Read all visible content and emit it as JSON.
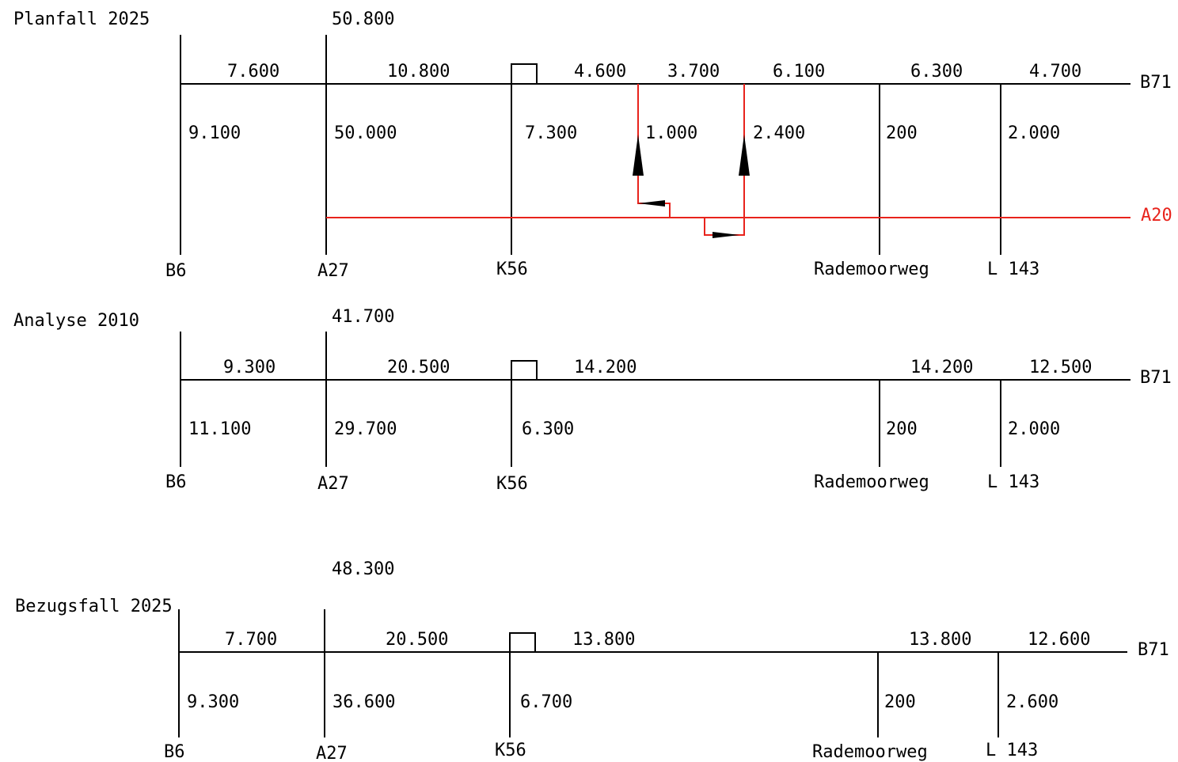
{
  "colors": {
    "line": "#000000",
    "a20": "#e8231c"
  },
  "diagrams": [
    {
      "key": "planfall",
      "title": "Planfall 2025",
      "top_value": "50.800",
      "main_road": "B71",
      "segment_values": [
        "7.600",
        "10.800",
        "4.600",
        "3.700",
        "6.100",
        "6.300",
        "4.700"
      ],
      "branches": [
        {
          "name": "B6",
          "value": "9.100"
        },
        {
          "name": "A27",
          "value": "50.000"
        },
        {
          "name": "K56",
          "value": "7.300"
        },
        {
          "name": "Rademoorweg",
          "value": "200"
        },
        {
          "name": "L 143",
          "value": "2.000"
        }
      ],
      "connectors": [
        {
          "value": "1.000"
        },
        {
          "value": "2.400"
        }
      ],
      "secondary_road": "A20"
    },
    {
      "key": "analyse",
      "title": "Analyse 2010",
      "top_value": "41.700",
      "main_road": "B71",
      "segment_values": [
        "9.300",
        "20.500",
        "14.200",
        "14.200",
        "12.500"
      ],
      "branches": [
        {
          "name": "B6",
          "value": "11.100"
        },
        {
          "name": "A27",
          "value": "29.700"
        },
        {
          "name": "K56",
          "value": "6.300"
        },
        {
          "name": "Rademoorweg",
          "value": "200"
        },
        {
          "name": "L 143",
          "value": "2.000"
        }
      ]
    },
    {
      "key": "bezugsfall",
      "title": "Bezugsfall 2025",
      "top_value": "48.300",
      "main_road": "B71",
      "segment_values": [
        "7.700",
        "20.500",
        "13.800",
        "13.800",
        "12.600"
      ],
      "branches": [
        {
          "name": "B6",
          "value": "9.300"
        },
        {
          "name": "A27",
          "value": "36.600"
        },
        {
          "name": "K56",
          "value": "6.700"
        },
        {
          "name": "Rademoorweg",
          "value": "200"
        },
        {
          "name": "L 143",
          "value": "2.600"
        }
      ]
    }
  ]
}
